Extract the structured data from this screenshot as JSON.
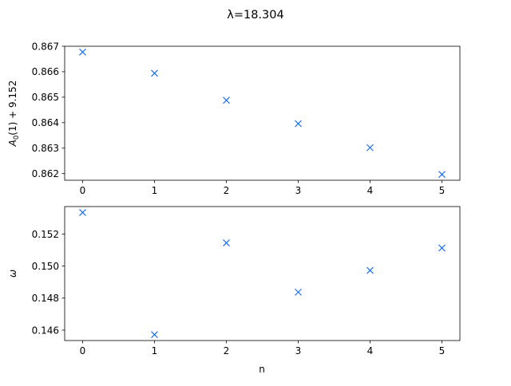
{
  "chart_data": {
    "suptitle": "λ=18.304",
    "marker_color": "#1f6fe6",
    "panels": [
      {
        "type": "scatter",
        "marker": "x",
        "x": [
          0,
          1,
          2,
          3,
          4,
          5
        ],
        "y": [
          0.86677,
          0.86594,
          0.86488,
          0.86396,
          0.86302,
          0.86197
        ],
        "xlabel": "",
        "ylabel_parts": [
          "A",
          "0",
          "(1) + 9.152"
        ],
        "xlim": [
          -0.25,
          5.25
        ],
        "ylim": [
          0.86174,
          0.867
        ],
        "xticks": [
          0,
          1,
          2,
          3,
          4,
          5
        ],
        "yticks": [
          0.862,
          0.863,
          0.864,
          0.865,
          0.866,
          0.867
        ],
        "yticklabels": [
          "0.862",
          "0.863",
          "0.864",
          "0.865",
          "0.866",
          "0.867"
        ],
        "grid": false
      },
      {
        "type": "scatter",
        "marker": "x",
        "x": [
          0,
          1,
          2,
          3,
          4,
          5
        ],
        "y": [
          0.15335,
          0.14572,
          0.15145,
          0.14837,
          0.14973,
          0.15113
        ],
        "xlabel": "n",
        "ylabel": "ω",
        "xlim": [
          -0.25,
          5.25
        ],
        "ylim": [
          0.14535,
          0.15372
        ],
        "xticks": [
          0,
          1,
          2,
          3,
          4,
          5
        ],
        "yticks": [
          0.146,
          0.148,
          0.15,
          0.152
        ],
        "yticklabels": [
          "0.146",
          "0.148",
          "0.150",
          "0.152"
        ],
        "grid": false
      }
    ]
  }
}
